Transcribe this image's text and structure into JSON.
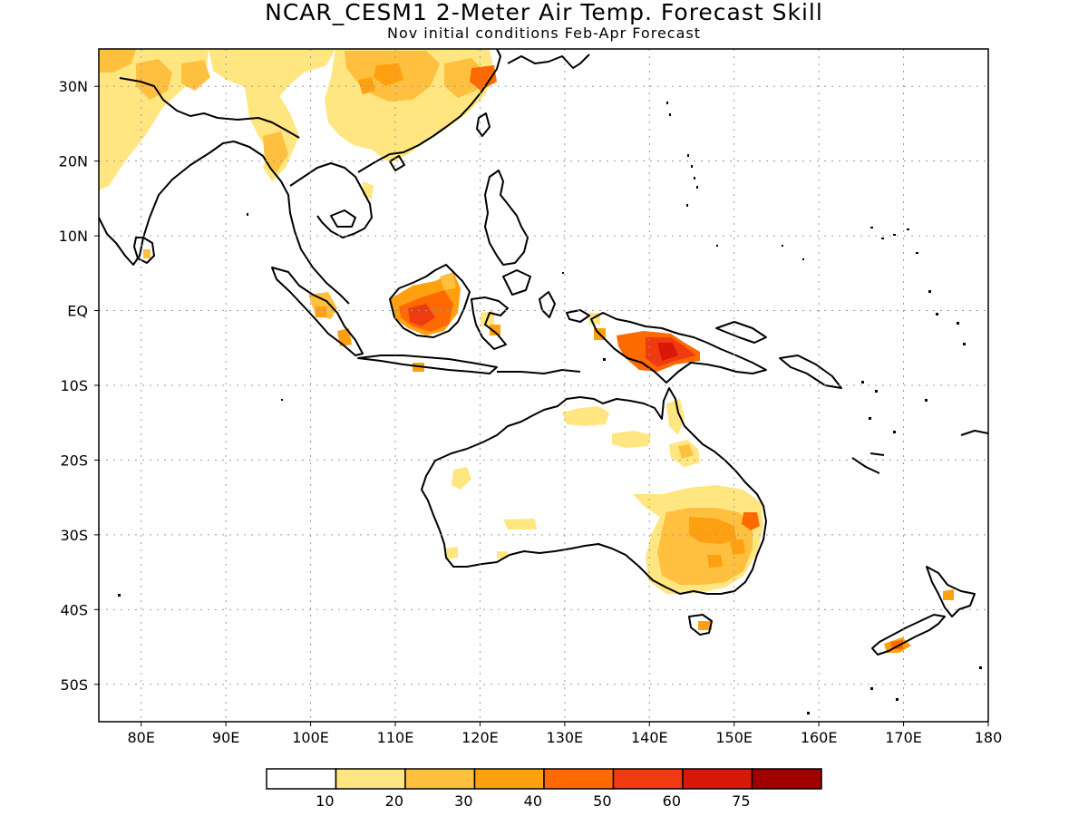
{
  "title": "NCAR_CESM1 2-Meter Air Temp. Forecast Skill",
  "subtitle": "Nov initial conditions  Feb-Apr Forecast",
  "lat_labels": [
    "30N",
    "20N",
    "10N",
    "EQ",
    "10S",
    "20S",
    "30S",
    "40S",
    "50S"
  ],
  "lon_labels": [
    "80E",
    "90E",
    "100E",
    "110E",
    "120E",
    "130E",
    "140E",
    "150E",
    "160E",
    "170E",
    "180"
  ],
  "legend": {
    "labels": [
      "10",
      "20",
      "30",
      "40",
      "50",
      "60",
      "75"
    ],
    "colors": [
      "#ffffff",
      "#ffe680",
      "#ffc040",
      "#ffa010",
      "#ff6a00",
      "#f03a10",
      "#d81808",
      "#a00000"
    ]
  },
  "map_extent": {
    "lon": [
      75,
      180
    ],
    "lat": [
      -55,
      35
    ]
  }
}
